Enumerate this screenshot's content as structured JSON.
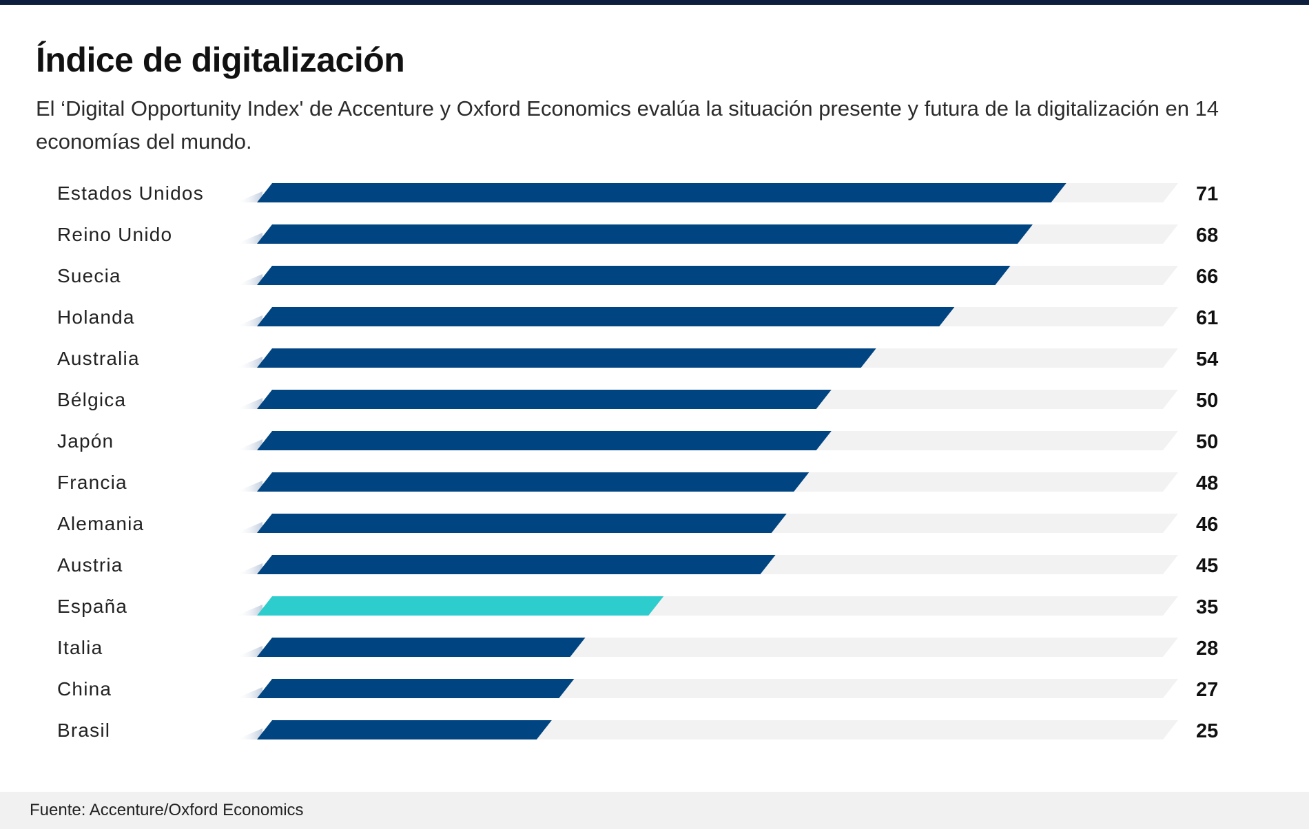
{
  "title": "Índice de digitalización",
  "subtitle": "El ‘Digital Opportunity Index' de Accenture y Oxford Economics evalúa la situación presente y futura de la digitalización en 14 economías del mundo.",
  "source": "Fuente: Accenture/Oxford Economics",
  "colors": {
    "bar": "#004481",
    "highlight": "#2dcccd",
    "track": "#f2f2f2",
    "header_rule": "#0d1f3d"
  },
  "chart_data": {
    "type": "bar",
    "orientation": "horizontal",
    "title": "Índice de digitalización",
    "xlabel": "",
    "ylabel": "",
    "xlim": [
      0,
      81
    ],
    "highlight_category": "España",
    "categories": [
      "Estados Unidos",
      "Reino Unido",
      "Suecia",
      "Holanda",
      "Australia",
      "Bélgica",
      "Japón",
      "Francia",
      "Alemania",
      "Austria",
      "España",
      "Italia",
      "China",
      "Brasil"
    ],
    "values": [
      71,
      68,
      66,
      61,
      54,
      50,
      50,
      48,
      46,
      45,
      35,
      28,
      27,
      25
    ]
  }
}
